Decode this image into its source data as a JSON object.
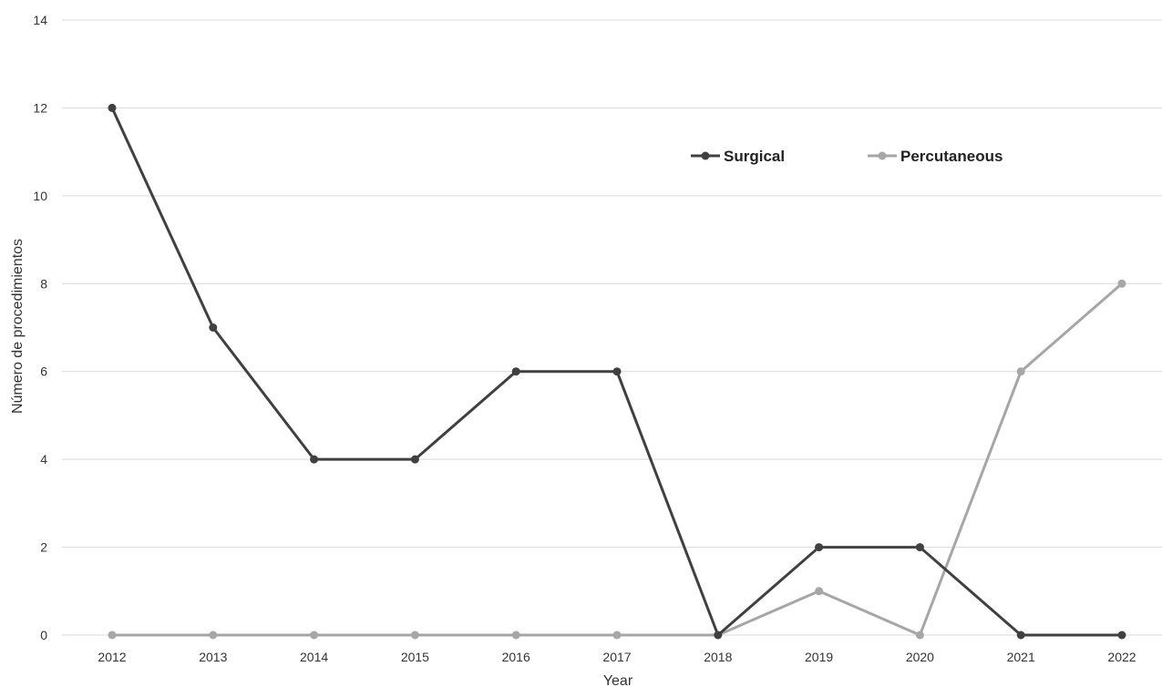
{
  "chart_data": {
    "type": "line",
    "categories": [
      "2012",
      "2013",
      "2014",
      "2015",
      "2016",
      "2017",
      "2018",
      "2019",
      "2020",
      "2021",
      "2022"
    ],
    "series": [
      {
        "name": "Surgical",
        "values": [
          12,
          7,
          4,
          4,
          6,
          6,
          0,
          2,
          2,
          0,
          0
        ],
        "color": "#404040"
      },
      {
        "name": "Percutaneous",
        "values": [
          0,
          0,
          0,
          0,
          0,
          0,
          0,
          1,
          0,
          6,
          8
        ],
        "color": "#a6a6a6"
      }
    ],
    "xlabel": "Year",
    "ylabel": "Número de procedimientos",
    "ylim": [
      0,
      14
    ],
    "yticks": [
      "0",
      "2",
      "4",
      "6",
      "8",
      "10",
      "12",
      "14"
    ],
    "grid": true,
    "legend_position": "top-right"
  }
}
